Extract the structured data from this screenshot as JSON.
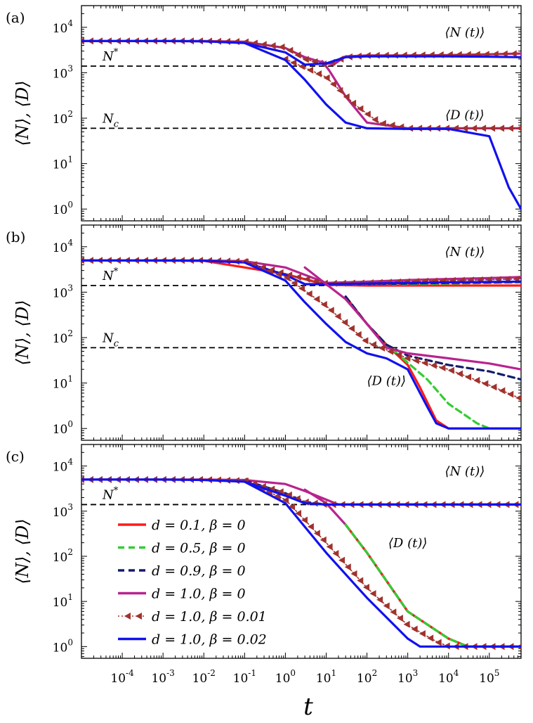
{
  "chart_data": {
    "type": "line",
    "xlabel": "t",
    "ylabel": "⟨N⟩, ⟨D⟩",
    "xscale": "log",
    "yscale": "log",
    "xlim": [
      1e-05,
      600000
    ],
    "ylim": [
      0.55,
      30000
    ],
    "x_tick_labels": [
      "10",
      "10",
      "10",
      "10",
      "10",
      "10",
      "10",
      "10",
      "10",
      "10"
    ],
    "x_tick_exps": [
      "-4",
      "-3",
      "-2",
      "-1",
      "0",
      "1",
      "2",
      "3",
      "4",
      "5"
    ],
    "y_tick_labels": [
      "10",
      "10",
      "10",
      "10",
      "10"
    ],
    "y_tick_exps": [
      "0",
      "1",
      "2",
      "3",
      "4"
    ],
    "legend": {
      "placement": "panel (c) lower-left",
      "entries": [
        "d = 0.1, β = 0",
        "d = 0.5, β = 0",
        "d = 0.9, β = 0",
        "d = 1.0, β = 0",
        "d = 1.0, β = 0.01",
        "d = 1.0, β = 0.02"
      ]
    },
    "series_styles": [
      {
        "name": "d = 0.1, β = 0",
        "color": "#ff1a1a",
        "dash": "solid"
      },
      {
        "name": "d = 0.5, β = 0",
        "color": "#33cc33",
        "dash": "dashed"
      },
      {
        "name": "d = 0.9, β = 0",
        "color": "#141a6b",
        "dash": "dashed"
      },
      {
        "name": "d = 1.0, β = 0",
        "color": "#b8238f",
        "dash": "solid"
      },
      {
        "name": "d = 1.0, β = 0.01",
        "color": "#a0322d",
        "dash": "dotted-triangles"
      },
      {
        "name": "d = 1.0, β = 0.02",
        "color": "#1111ee",
        "dash": "solid"
      }
    ],
    "panels": [
      {
        "label": "(a)",
        "refs": [
          {
            "label": "N*",
            "y": 1400
          },
          {
            "label": "N_c",
            "y": 60
          }
        ],
        "annotations": [
          {
            "text": "⟨N (t)⟩",
            "x": 25000,
            "y": 6200
          },
          {
            "text": "⟨D (t)⟩",
            "x": 25000,
            "y": 95
          }
        ],
        "series": [
          {
            "name": "d = 1.0, β = 0",
            "x": [
              1e-05,
              0.001,
              0.01,
              0.1,
              1,
              3,
              8,
              15,
              30,
              100,
              1000,
              10000,
              100000,
              600000
            ],
            "y": [
              5000,
              5000,
              5000,
              4800,
              3500,
              2200,
              1700,
              1500,
              2300,
              2400,
              2400,
              2450,
              2550,
              2650
            ]
          },
          {
            "name": "d = 1.0, β = 0",
            "x": [
              8,
              12,
              30,
              100,
              1000,
              10000,
              600000
            ],
            "y": [
              1800,
              1100,
              300,
              80,
              60,
              60,
              60
            ]
          },
          {
            "name": "d = 1.0, β = 0.01",
            "x": [
              1e-05,
              0.001,
              0.01,
              0.1,
              1,
              3,
              10,
              30,
              100,
              1000,
              10000,
              100000,
              600000
            ],
            "y": [
              5000,
              5000,
              5000,
              4800,
              3600,
              2000,
              1500,
              2200,
              2400,
              2450,
              2500,
              2550,
              2650
            ]
          },
          {
            "name": "d = 1.0, β = 0.01",
            "x": [
              1,
              10,
              50,
              200,
              1000,
              10000,
              100000,
              600000
            ],
            "y": [
              2000,
              800,
              200,
              80,
              60,
              60,
              60,
              60
            ]
          },
          {
            "name": "d = 1.0, β = 0.02",
            "x": [
              1e-05,
              0.001,
              0.01,
              0.1,
              1,
              3,
              10,
              30,
              100,
              1000,
              10000,
              100000,
              600000
            ],
            "y": [
              5000,
              5000,
              4900,
              4500,
              2800,
              1500,
              1600,
              2200,
              2300,
              2300,
              2300,
              2250,
              2200
            ]
          },
          {
            "name": "d = 1.0, β = 0.02",
            "x": [
              0.1,
              1,
              3,
              10,
              30,
              100,
              1000,
              10000,
              100000,
              300000,
              600000
            ],
            "y": [
              4500,
              1900,
              700,
              200,
              80,
              60,
              58,
              58,
              40,
              3,
              1
            ]
          }
        ]
      },
      {
        "label": "(b)",
        "refs": [
          {
            "label": "N*",
            "y": 1400
          },
          {
            "label": "N_c",
            "y": 60
          }
        ],
        "annotations": [
          {
            "text": "⟨N (t)⟩",
            "x": 25000,
            "y": 6200
          },
          {
            "text": "⟨D (t)⟩",
            "x": 300,
            "y": 9
          }
        ],
        "series": [
          {
            "name": "d = 0.1, β = 0",
            "x": [
              1e-05,
              0.01,
              1,
              10,
              100,
              1000,
              10000,
              100000,
              600000
            ],
            "y": [
              5000,
              4900,
              2500,
              1450,
              1400,
              1400,
              1400,
              1400,
              1400
            ]
          },
          {
            "name": "d = 0.5, β = 0",
            "x": [
              10,
              100,
              1000,
              10000,
              100000,
              600000
            ],
            "y": [
              1500,
              1500,
              1500,
              1550,
              1600,
              1650
            ]
          },
          {
            "name": "d = 0.9, β = 0",
            "x": [
              10,
              100,
              1000,
              10000,
              100000,
              600000
            ],
            "y": [
              1500,
              1500,
              1550,
              1600,
              1650,
              1700
            ]
          },
          {
            "name": "d = 1.0, β = 0",
            "x": [
              1e-05,
              0.001,
              0.01,
              0.1,
              1,
              10,
              100,
              1000,
              10000,
              100000,
              600000
            ],
            "y": [
              5000,
              5000,
              5000,
              4800,
              3500,
              1600,
              1700,
              1850,
              1950,
              2050,
              2150
            ]
          },
          {
            "name": "d = 1.0, β = 0.01",
            "x": [
              1e-05,
              0.001,
              0.01,
              0.1,
              1,
              10,
              100,
              1000,
              10000,
              600000
            ],
            "y": [
              5000,
              5000,
              5000,
              4700,
              2500,
              1550,
              1600,
              1700,
              1800,
              1950
            ]
          },
          {
            "name": "d = 1.0, β = 0.02",
            "x": [
              1e-05,
              0.001,
              0.01,
              0.1,
              1,
              3,
              10,
              100,
              1000,
              10000,
              600000
            ],
            "y": [
              5000,
              5000,
              4900,
              4500,
              2400,
              1500,
              1500,
              1550,
              1600,
              1650,
              1700
            ]
          },
          {
            "name": "d = 0.1, β = 0",
            "x": [
              30,
              100,
              300,
              1000,
              2000,
              5000,
              10000,
              100000,
              600000
            ],
            "y": [
              800,
              200,
              70,
              25,
              8,
              1.5,
              1,
              1,
              1
            ]
          },
          {
            "name": "d = 0.5, β = 0",
            "x": [
              30,
              100,
              300,
              1000,
              3000,
              10000,
              50000,
              100000,
              600000
            ],
            "y": [
              800,
              200,
              70,
              28,
              12,
              3.5,
              1.3,
              1,
              1
            ]
          },
          {
            "name": "d = 0.9, β = 0",
            "x": [
              30,
              100,
              300,
              1000,
              10000,
              100000,
              600000
            ],
            "y": [
              800,
              200,
              70,
              40,
              25,
              18,
              12
            ]
          },
          {
            "name": "d = 1.0, β = 0",
            "x": [
              3,
              10,
              30,
              100,
              300,
              1000,
              10000,
              100000,
              600000
            ],
            "y": [
              3500,
              1500,
              700,
              200,
              60,
              45,
              35,
              27,
              20
            ]
          },
          {
            "name": "d = 1.0, β = 0.01",
            "x": [
              0.1,
              1,
              10,
              100,
              1000,
              10000,
              100000,
              600000
            ],
            "y": [
              4700,
              2200,
              500,
              80,
              35,
              20,
              9,
              4.5
            ]
          },
          {
            "name": "d = 1.0, β = 0.02",
            "x": [
              0.1,
              1,
              3,
              10,
              30,
              100,
              300,
              1000,
              3000,
              5000,
              10000,
              100000,
              600000
            ],
            "y": [
              4500,
              1800,
              600,
              200,
              80,
              45,
              35,
              20,
              3,
              1.3,
              1,
              1,
              1
            ]
          }
        ]
      },
      {
        "label": "(c)",
        "refs": [
          {
            "label": "N*",
            "y": 1400
          }
        ],
        "annotations": [
          {
            "text": "⟨N (t)⟩",
            "x": 25000,
            "y": 6200
          },
          {
            "text": "⟨D (t)⟩",
            "x": 1000,
            "y": 160
          }
        ],
        "series": [
          {
            "name": "d = 1.0, β = 0",
            "x": [
              1e-05,
              0.001,
              0.01,
              0.1,
              1,
              3,
              10,
              20,
              50,
              100,
              1000,
              10000,
              100000,
              600000
            ],
            "y": [
              5000,
              5000,
              5000,
              4900,
              4000,
              2800,
              1800,
              1400,
              1400,
              1400,
              1400,
              1400,
              1400,
              1400
            ]
          },
          {
            "name": "d = 1.0, β = 0",
            "x": [
              3,
              10,
              30,
              100,
              1000,
              10000,
              30000,
              100000,
              600000
            ],
            "y": [
              3000,
              1500,
              500,
              120,
              6,
              1.5,
              1,
              1,
              1
            ]
          },
          {
            "name": "d = 0.1, β = 0",
            "x": [
              30,
              100,
              1000,
              10000,
              30000,
              100000,
              600000
            ],
            "y": [
              500,
              120,
              6,
              1.5,
              1,
              1,
              1
            ]
          },
          {
            "name": "d = 0.5, β = 0",
            "x": [
              30,
              100,
              1000,
              10000,
              30000,
              100000,
              600000
            ],
            "y": [
              500,
              120,
              6,
              1.5,
              1,
              1,
              1
            ]
          },
          {
            "name": "d = 0.9, β = 0",
            "x": [
              0.1,
              1,
              3,
              10,
              100,
              1000,
              10000,
              600000
            ],
            "y": [
              4800,
              2500,
              1600,
              1400,
              1400,
              1400,
              1400,
              1400
            ]
          },
          {
            "name": "d = 1.0, β = 0.01",
            "x": [
              1e-05,
              0.001,
              0.01,
              0.1,
              1,
              3,
              10,
              100,
              1000,
              10000,
              600000
            ],
            "y": [
              5000,
              5000,
              5000,
              4700,
              2500,
              1600,
              1400,
              1400,
              1400,
              1400,
              1400
            ]
          },
          {
            "name": "d = 1.0, β = 0.01",
            "x": [
              0.1,
              1,
              10,
              100,
              1000,
              5000,
              10000,
              100000,
              600000
            ],
            "y": [
              4700,
              1800,
              200,
              20,
              3,
              1.3,
              1,
              1,
              1
            ]
          },
          {
            "name": "d = 1.0, β = 0.02",
            "x": [
              1e-05,
              0.001,
              0.01,
              0.1,
              1,
              3,
              10,
              100,
              1000,
              10000,
              600000
            ],
            "y": [
              5000,
              5000,
              4900,
              4500,
              2200,
              1500,
              1400,
              1400,
              1400,
              1400,
              1400
            ]
          },
          {
            "name": "d = 1.0, β = 0.02",
            "x": [
              0.1,
              1,
              10,
              100,
              1000,
              2000,
              10000,
              600000
            ],
            "y": [
              4500,
              1500,
              120,
              12,
              1.5,
              1,
              1,
              1
            ]
          }
        ]
      }
    ]
  }
}
